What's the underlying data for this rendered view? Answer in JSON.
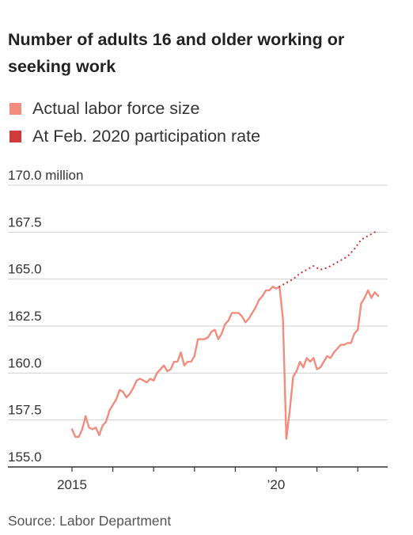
{
  "title": "Number of adults 16 and older working or seeking work",
  "source": "Source: Labor Department",
  "colors": {
    "actual": "#f28c7d",
    "counterfactual": "#d03a38",
    "grid": "#d0d0d0",
    "axis": "#333333"
  },
  "legend": [
    {
      "label": "Actual labor force size",
      "color": "#f28c7d"
    },
    {
      "label": "At Feb. 2020 participation rate",
      "color": "#d03a38"
    }
  ],
  "chart_data": {
    "type": "line",
    "title": "Number of adults 16 and older working or seeking work",
    "ylabel": "",
    "xlabel": "",
    "ylim": [
      155.0,
      170.0
    ],
    "y_unit": "million",
    "y_ticks": [
      "155.0",
      "157.5",
      "160.0",
      "162.5",
      "165.0",
      "167.5",
      "170.0 million"
    ],
    "x_tick_labels": [
      {
        "label": "2015",
        "x": "2015-01"
      },
      {
        "label": "’20",
        "x": "2020-01"
      }
    ],
    "x_minor_ticks": [
      "2016-01",
      "2017-01",
      "2018-01",
      "2019-01",
      "2021-01",
      "2022-01"
    ],
    "grid": true,
    "legend_position": "top-left",
    "series": [
      {
        "name": "Actual labor force size",
        "style": "solid",
        "x": [
          "2015-01",
          "2015-02",
          "2015-03",
          "2015-04",
          "2015-05",
          "2015-06",
          "2015-07",
          "2015-08",
          "2015-09",
          "2015-10",
          "2015-11",
          "2015-12",
          "2016-01",
          "2016-02",
          "2016-03",
          "2016-04",
          "2016-05",
          "2016-06",
          "2016-07",
          "2016-08",
          "2016-09",
          "2016-10",
          "2016-11",
          "2016-12",
          "2017-01",
          "2017-02",
          "2017-03",
          "2017-04",
          "2017-05",
          "2017-06",
          "2017-07",
          "2017-08",
          "2017-09",
          "2017-10",
          "2017-11",
          "2017-12",
          "2018-01",
          "2018-02",
          "2018-03",
          "2018-04",
          "2018-05",
          "2018-06",
          "2018-07",
          "2018-08",
          "2018-09",
          "2018-10",
          "2018-11",
          "2018-12",
          "2019-01",
          "2019-02",
          "2019-03",
          "2019-04",
          "2019-05",
          "2019-06",
          "2019-07",
          "2019-08",
          "2019-09",
          "2019-10",
          "2019-11",
          "2019-12",
          "2020-01",
          "2020-02",
          "2020-03",
          "2020-04",
          "2020-05",
          "2020-06",
          "2020-07",
          "2020-08",
          "2020-09",
          "2020-10",
          "2020-11",
          "2020-12",
          "2021-01",
          "2021-02",
          "2021-03",
          "2021-04",
          "2021-05",
          "2021-06",
          "2021-07",
          "2021-08",
          "2021-09",
          "2021-10",
          "2021-11",
          "2021-12",
          "2022-01",
          "2022-02",
          "2022-03",
          "2022-04",
          "2022-05",
          "2022-06",
          "2022-07"
        ],
        "values": [
          157.0,
          156.6,
          156.6,
          157.0,
          157.7,
          157.1,
          157.0,
          157.1,
          156.7,
          157.2,
          157.4,
          158.0,
          158.3,
          158.6,
          159.1,
          159.0,
          158.7,
          158.9,
          159.2,
          159.6,
          159.7,
          159.6,
          159.5,
          159.7,
          159.6,
          160.0,
          160.2,
          160.4,
          160.1,
          160.2,
          160.6,
          160.6,
          161.1,
          160.4,
          160.6,
          160.6,
          160.9,
          161.8,
          161.8,
          161.8,
          161.9,
          162.2,
          162.3,
          161.8,
          162.1,
          162.6,
          162.8,
          163.2,
          163.2,
          163.2,
          163.0,
          162.7,
          162.9,
          163.2,
          163.5,
          163.9,
          164.1,
          164.4,
          164.4,
          164.6,
          164.5,
          164.6,
          162.9,
          156.5,
          158.0,
          159.8,
          160.1,
          160.6,
          160.3,
          160.8,
          160.6,
          160.8,
          160.2,
          160.3,
          160.6,
          160.9,
          160.8,
          161.1,
          161.3,
          161.5,
          161.5,
          161.6,
          161.6,
          162.1,
          162.3,
          163.7,
          164.0,
          164.4,
          164.0,
          164.3,
          164.1
        ]
      },
      {
        "name": "At Feb. 2020 participation rate",
        "style": "dotted",
        "x": [
          "2020-02",
          "2020-04",
          "2020-06",
          "2020-08",
          "2020-10",
          "2020-12",
          "2021-02",
          "2021-04",
          "2021-06",
          "2021-08",
          "2021-10",
          "2021-12",
          "2022-02",
          "2022-04",
          "2022-06",
          "2022-07"
        ],
        "values": [
          164.6,
          164.8,
          165.0,
          165.3,
          165.5,
          165.7,
          165.5,
          165.6,
          165.8,
          166.0,
          166.2,
          166.6,
          167.1,
          167.3,
          167.5,
          167.6
        ]
      }
    ]
  }
}
